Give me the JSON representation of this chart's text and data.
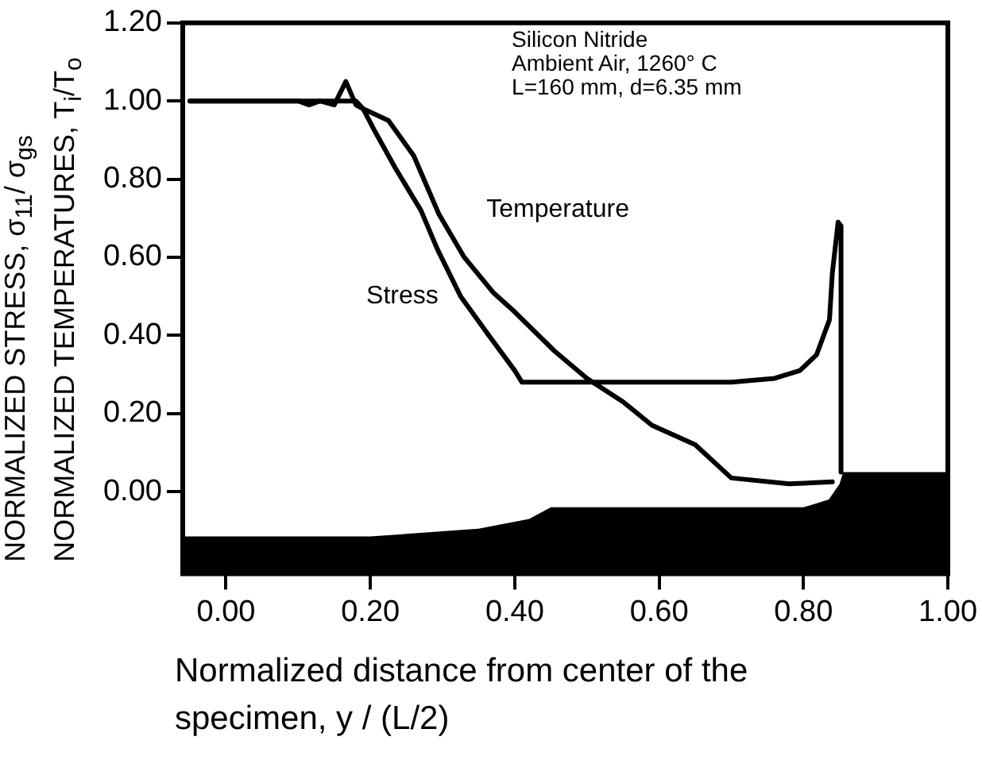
{
  "chart_data": {
    "type": "line",
    "xlabel": "Normalized distance from center of the specimen, y / (L/2)",
    "ylabel": "NORMALIZED STRESS,  σ$_{11}$/ σ$_{gs}$\nNORMALIZED TEMPERATURES, T$_{i}$/T$_{o}$",
    "annotations": [
      "Silicon Nitride",
      "Ambient Air, 1260° C",
      "L=160 mm, d=6.35 mm"
    ],
    "xlim": [
      -0.06,
      1.0
    ],
    "ylim": [
      -0.21,
      1.2
    ],
    "xticks": [
      {
        "value": 0,
        "label": "0.00"
      },
      {
        "value": 0.2,
        "label": "0.20"
      },
      {
        "value": 0.4,
        "label": "0.40"
      },
      {
        "value": 0.6,
        "label": "0.60"
      },
      {
        "value": 0.8,
        "label": "0.80"
      },
      {
        "value": 1,
        "label": "1.00"
      }
    ],
    "yticks": [
      {
        "value": 0,
        "label": "0.00"
      },
      {
        "value": 0.2,
        "label": "0.20"
      },
      {
        "value": 0.4,
        "label": "0.40"
      },
      {
        "value": 0.6,
        "label": "0.60"
      },
      {
        "value": 0.8,
        "label": "0.80"
      },
      {
        "value": 1,
        "label": "1.00"
      },
      {
        "value": 1.2,
        "label": "1.20"
      }
    ],
    "grid": false,
    "legend": false,
    "marker": "none",
    "line_style": "solid",
    "series": [
      {
        "name": "Stress",
        "color": "#000000",
        "x": [
          -0.05,
          0.1,
          0.115,
          0.13,
          0.15,
          0.166,
          0.18,
          0.19,
          0.207,
          0.234,
          0.27,
          0.293,
          0.325,
          0.364,
          0.4,
          0.41,
          0.5,
          0.6,
          0.7,
          0.76,
          0.795,
          0.818,
          0.836,
          0.84,
          0.848,
          0.852,
          0.852
        ],
        "values": [
          1.0,
          1.0,
          0.99,
          1.0,
          0.99,
          1.05,
          0.99,
          0.98,
          0.92,
          0.83,
          0.72,
          0.62,
          0.5,
          0.4,
          0.31,
          0.28,
          0.28,
          0.28,
          0.28,
          0.29,
          0.31,
          0.35,
          0.44,
          0.56,
          0.69,
          0.68,
          0.05
        ]
      },
      {
        "name": "Temperature",
        "color": "#000000",
        "x": [
          -0.05,
          0.1,
          0.18,
          0.19,
          0.225,
          0.26,
          0.295,
          0.33,
          0.37,
          0.4,
          0.455,
          0.5,
          0.55,
          0.59,
          0.65,
          0.7,
          0.78,
          0.84
        ],
        "values": [
          1.0,
          1.0,
          1.0,
          0.98,
          0.95,
          0.86,
          0.71,
          0.6,
          0.51,
          0.46,
          0.36,
          0.29,
          0.23,
          0.17,
          0.12,
          0.035,
          0.02,
          0.025
        ]
      }
    ]
  }
}
